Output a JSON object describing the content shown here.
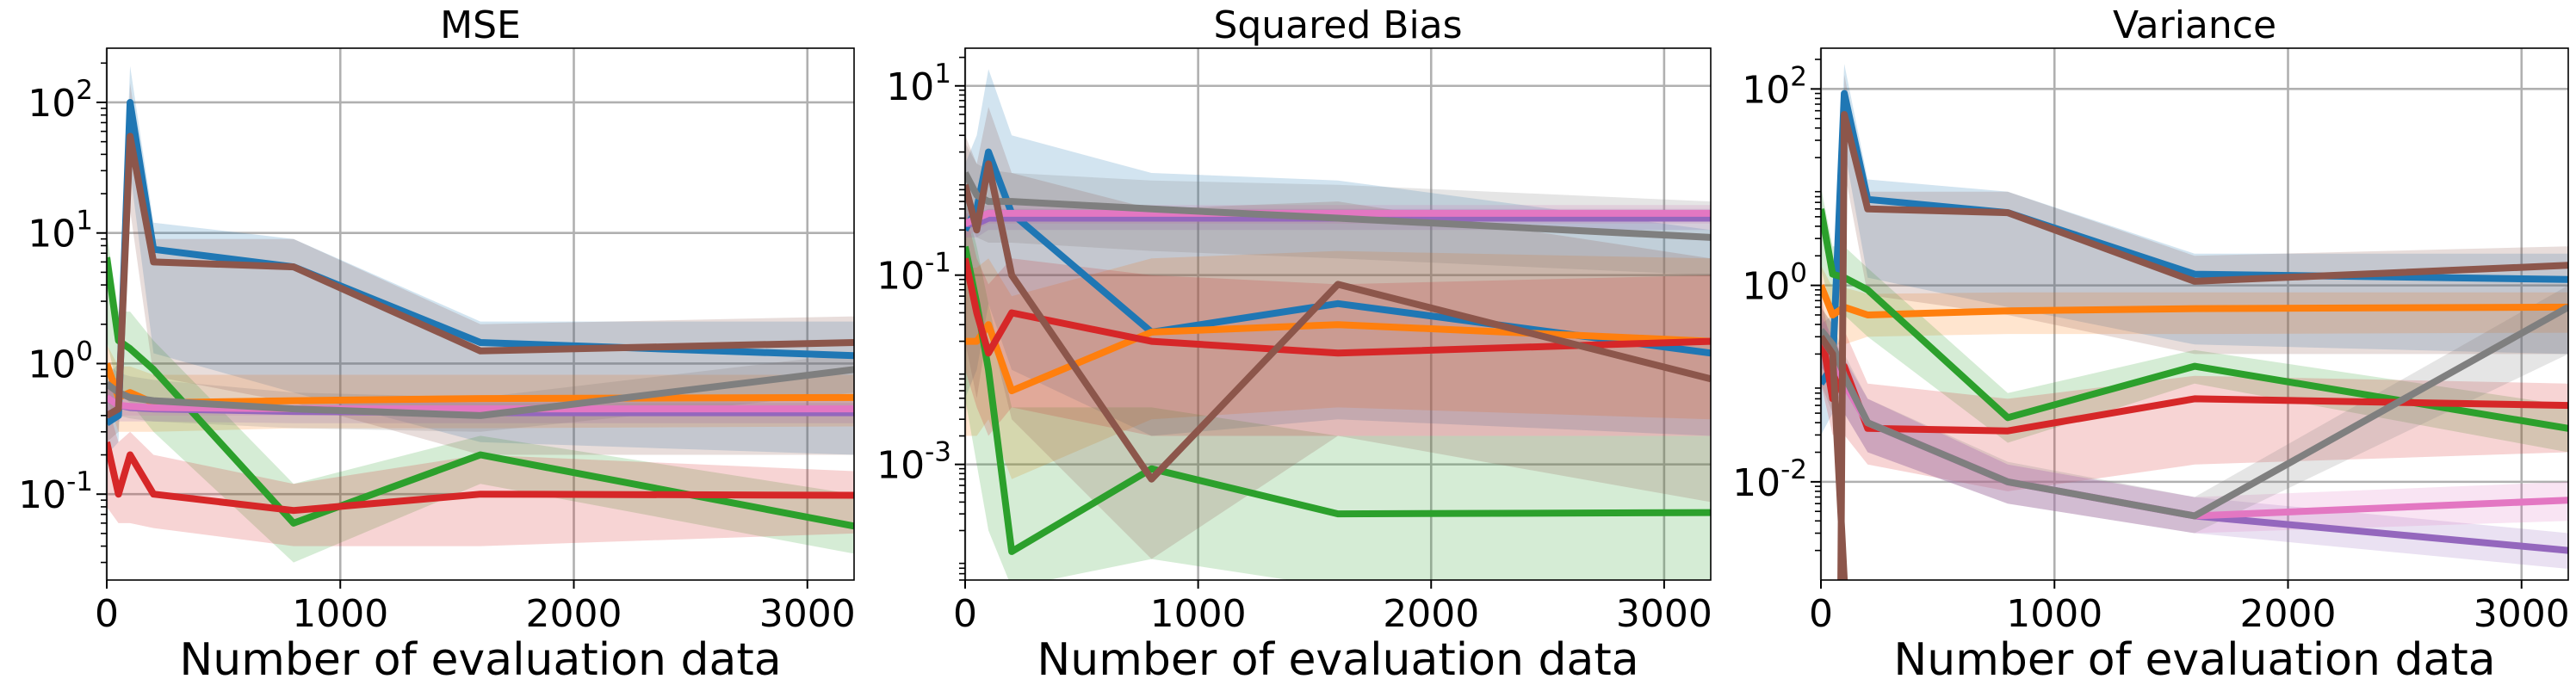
{
  "chart_data": [
    {
      "type": "line",
      "title": "MSE",
      "xlabel": "Number of evaluation data",
      "ylabel": "",
      "yscale": "log",
      "xlim": [
        0,
        3200
      ],
      "ylim": [
        0.022,
        260
      ],
      "x_ticks": [
        0,
        1000,
        2000,
        3000
      ],
      "x_tick_labels": [
        "0",
        "1000",
        "2000",
        "3000"
      ],
      "y_ticks": [
        0.1,
        1,
        10,
        100
      ],
      "y_tick_labels": [
        "10^{-1}",
        "10^{0}",
        "10^{1}",
        "10^{2}"
      ],
      "grid": true,
      "series": [
        {
          "color": "#1f77b4",
          "x": [
            0,
            50,
            100,
            200,
            800,
            1600,
            3200
          ],
          "y": [
            0.35,
            0.4,
            100,
            7.5,
            5.5,
            1.45,
            1.15
          ],
          "lo": [
            0.2,
            0.25,
            30,
            1.2,
            0.6,
            0.25,
            0.2
          ],
          "hi": [
            0.8,
            1.0,
            190,
            12,
            9,
            2.1,
            2.1
          ]
        },
        {
          "color": "#ff7f0e",
          "x": [
            0,
            50,
            100,
            200,
            800,
            1600,
            3200
          ],
          "y": [
            1.0,
            0.55,
            0.6,
            0.5,
            0.52,
            0.54,
            0.55
          ],
          "lo": [
            0.55,
            0.3,
            0.3,
            0.3,
            0.32,
            0.32,
            0.33
          ],
          "hi": [
            1.4,
            0.95,
            0.95,
            0.82,
            0.82,
            0.82,
            0.82
          ]
        },
        {
          "color": "#2ca02c",
          "x": [
            0,
            50,
            100,
            200,
            800,
            1600,
            3200
          ],
          "y": [
            6.5,
            1.5,
            1.3,
            0.9,
            0.06,
            0.2,
            0.057
          ],
          "lo": [
            1.5,
            0.6,
            0.5,
            0.3,
            0.03,
            0.12,
            0.035
          ],
          "hi": [
            10,
            2.5,
            2.5,
            1.5,
            0.12,
            0.28,
            0.1
          ]
        },
        {
          "color": "#d62728",
          "x": [
            0,
            50,
            100,
            200,
            800,
            1600,
            3200
          ],
          "y": [
            0.25,
            0.1,
            0.2,
            0.1,
            0.075,
            0.1,
            0.098
          ],
          "lo": [
            0.08,
            0.06,
            0.06,
            0.055,
            0.04,
            0.04,
            0.05
          ],
          "hi": [
            0.5,
            0.25,
            0.3,
            0.2,
            0.12,
            0.2,
            0.15
          ]
        },
        {
          "color": "#9467bd",
          "x": [
            0,
            50,
            100,
            200,
            800,
            1600,
            3200
          ],
          "y": [
            0.55,
            0.48,
            0.46,
            0.45,
            0.43,
            0.42,
            0.42
          ],
          "lo": [
            0.38,
            0.36,
            0.36,
            0.36,
            0.35,
            0.35,
            0.35
          ],
          "hi": [
            0.7,
            0.62,
            0.58,
            0.55,
            0.52,
            0.5,
            0.5
          ]
        },
        {
          "color": "#e377c2",
          "x": [
            0,
            50,
            100,
            200,
            800,
            1600,
            3200
          ],
          "y": [
            0.55,
            0.48,
            0.47,
            0.46,
            0.45,
            0.45,
            0.45
          ],
          "lo": [
            0.42,
            0.4,
            0.4,
            0.4,
            0.4,
            0.4,
            0.4
          ],
          "hi": [
            0.68,
            0.58,
            0.55,
            0.53,
            0.52,
            0.52,
            0.52
          ]
        },
        {
          "color": "#7f7f7f",
          "x": [
            0,
            50,
            100,
            200,
            800,
            1600,
            3200
          ],
          "y": [
            0.7,
            0.6,
            0.55,
            0.52,
            0.45,
            0.4,
            0.9
          ],
          "lo": [
            0.45,
            0.4,
            0.38,
            0.36,
            0.32,
            0.3,
            0.6
          ],
          "hi": [
            1.0,
            0.85,
            0.8,
            0.75,
            0.6,
            0.55,
            1.2
          ]
        },
        {
          "color": "#8c564b",
          "x": [
            0,
            50,
            100,
            200,
            800,
            1600,
            3200
          ],
          "y": [
            0.4,
            0.45,
            55,
            6.0,
            5.5,
            1.25,
            1.45
          ],
          "lo": [
            0.25,
            0.3,
            15,
            0.8,
            0.5,
            0.2,
            0.2
          ],
          "hi": [
            0.7,
            0.8,
            140,
            9,
            9,
            2.0,
            2.3
          ]
        }
      ]
    },
    {
      "type": "line",
      "title": "Squared Bias",
      "xlabel": "Number of evaluation data",
      "ylabel": "",
      "yscale": "log",
      "xlim": [
        0,
        3200
      ],
      "ylim": [
        6e-05,
        25
      ],
      "x_ticks": [
        0,
        1000,
        2000,
        3000
      ],
      "x_tick_labels": [
        "0",
        "1000",
        "2000",
        "3000"
      ],
      "y_ticks": [
        0.001,
        0.1,
        10
      ],
      "y_tick_labels": [
        "10^{-3}",
        "10^{-1}",
        "10^{1}"
      ],
      "grid": true,
      "series": [
        {
          "color": "#1f77b4",
          "x": [
            0,
            50,
            100,
            200,
            800,
            1600,
            3200
          ],
          "y": [
            0.3,
            0.5,
            2.0,
            0.45,
            0.025,
            0.05,
            0.015
          ],
          "lo": [
            0.005,
            0.01,
            0.05,
            0.01,
            0.002,
            0.003,
            0.002
          ],
          "hi": [
            1.5,
            3,
            15,
            3,
            1.2,
            1.0,
            0.3
          ]
        },
        {
          "color": "#ff7f0e",
          "x": [
            0,
            50,
            100,
            200,
            800,
            1600,
            3200
          ],
          "y": [
            0.02,
            0.02,
            0.03,
            0.006,
            0.025,
            0.03,
            0.02
          ],
          "lo": [
            0.002,
            0.002,
            0.003,
            0.0007,
            0.003,
            0.004,
            0.003
          ],
          "hi": [
            0.12,
            0.12,
            0.15,
            0.06,
            0.15,
            0.18,
            0.15
          ]
        },
        {
          "color": "#2ca02c",
          "x": [
            0,
            50,
            100,
            200,
            800,
            1600,
            3200
          ],
          "y": [
            0.2,
            0.05,
            0.01,
            0.00012,
            0.0009,
            0.0003,
            0.00031
          ],
          "lo": [
            0.005,
            0.001,
            0.0002,
            5e-05,
            0.0001,
            5e-05,
            5e-05
          ],
          "hi": [
            0.6,
            0.2,
            0.05,
            0.004,
            0.004,
            0.002,
            0.002
          ]
        },
        {
          "color": "#d62728",
          "x": [
            0,
            50,
            100,
            200,
            800,
            1600,
            3200
          ],
          "y": [
            0.15,
            0.04,
            0.015,
            0.04,
            0.02,
            0.015,
            0.02
          ],
          "lo": [
            0.01,
            0.004,
            0.002,
            0.004,
            0.002,
            0.002,
            0.002
          ],
          "hi": [
            0.5,
            0.15,
            0.08,
            0.15,
            0.1,
            0.08,
            0.1
          ]
        },
        {
          "color": "#9467bd",
          "x": [
            0,
            50,
            100,
            200,
            800,
            1600,
            3200
          ],
          "y": [
            0.35,
            0.35,
            0.4,
            0.4,
            0.4,
            0.4,
            0.4
          ],
          "lo": [
            0.25,
            0.25,
            0.3,
            0.3,
            0.3,
            0.3,
            0.3
          ],
          "hi": [
            0.45,
            0.45,
            0.5,
            0.5,
            0.5,
            0.5,
            0.5
          ]
        },
        {
          "color": "#e377c2",
          "x": [
            0,
            50,
            100,
            200,
            800,
            1600,
            3200
          ],
          "y": [
            0.35,
            0.4,
            0.45,
            0.45,
            0.45,
            0.45,
            0.45
          ],
          "lo": [
            0.25,
            0.3,
            0.35,
            0.35,
            0.35,
            0.35,
            0.35
          ],
          "hi": [
            0.5,
            0.52,
            0.55,
            0.55,
            0.55,
            0.55,
            0.55
          ]
        },
        {
          "color": "#7f7f7f",
          "x": [
            0,
            50,
            100,
            200,
            800,
            1600,
            3200
          ],
          "y": [
            1.2,
            0.7,
            0.6,
            0.6,
            0.5,
            0.4,
            0.25
          ],
          "lo": [
            0.4,
            0.25,
            0.22,
            0.22,
            0.18,
            0.15,
            0.1
          ],
          "hi": [
            2.5,
            1.5,
            1.3,
            1.2,
            1.0,
            0.9,
            0.6
          ]
        },
        {
          "color": "#8c564b",
          "x": [
            0,
            50,
            100,
            200,
            800,
            1600,
            3200
          ],
          "y": [
            0.9,
            0.3,
            1.5,
            0.1,
            0.0007,
            0.08,
            0.008
          ],
          "lo": [
            0.02,
            0.005,
            0.03,
            0.003,
            0.0001,
            0.002,
            0.0004
          ],
          "hi": [
            3,
            1.5,
            6,
            1.2,
            0.5,
            0.6,
            0.15
          ]
        }
      ]
    },
    {
      "type": "line",
      "title": "Variance",
      "xlabel": "Number of evaluation data",
      "ylabel": "",
      "yscale": "log",
      "xlim": [
        0,
        3200
      ],
      "ylim": [
        0.001,
        260
      ],
      "x_ticks": [
        0,
        1000,
        2000,
        3000
      ],
      "x_tick_labels": [
        "0",
        "1000",
        "2000",
        "3000"
      ],
      "y_ticks": [
        0.01,
        1,
        100
      ],
      "y_tick_labels": [
        "10^{-2}",
        "10^{0}",
        "10^{2}"
      ],
      "grid": true,
      "series": [
        {
          "color": "#1f77b4",
          "x": [
            0,
            50,
            100,
            200,
            800,
            1600,
            3200
          ],
          "y": [
            0.1,
            0.15,
            90,
            7.5,
            5.5,
            1.3,
            1.15
          ],
          "lo": [
            0.03,
            0.05,
            25,
            1.2,
            0.6,
            0.25,
            0.2
          ],
          "hi": [
            0.4,
            0.5,
            180,
            12,
            9,
            2.1,
            2.1
          ]
        },
        {
          "color": "#ff7f0e",
          "x": [
            0,
            50,
            100,
            200,
            800,
            1600,
            3200
          ],
          "y": [
            1.0,
            0.5,
            0.6,
            0.5,
            0.55,
            0.58,
            0.6
          ],
          "lo": [
            0.3,
            0.25,
            0.25,
            0.3,
            0.32,
            0.32,
            0.33
          ],
          "hi": [
            1.6,
            0.95,
            0.95,
            0.82,
            0.85,
            0.85,
            0.85
          ]
        },
        {
          "color": "#2ca02c",
          "x": [
            0,
            50,
            100,
            200,
            800,
            1600,
            3200
          ],
          "y": [
            6.0,
            1.3,
            1.2,
            0.9,
            0.045,
            0.15,
            0.035
          ],
          "lo": [
            1.5,
            0.5,
            0.5,
            0.3,
            0.025,
            0.1,
            0.02
          ],
          "hi": [
            10,
            2.5,
            2.5,
            1.5,
            0.08,
            0.22,
            0.06
          ]
        },
        {
          "color": "#d62728",
          "x": [
            0,
            50,
            100,
            200,
            800,
            1600,
            3200
          ],
          "y": [
            0.35,
            0.07,
            0.15,
            0.035,
            0.033,
            0.07,
            0.06
          ],
          "lo": [
            0.1,
            0.03,
            0.03,
            0.015,
            0.008,
            0.015,
            0.02
          ],
          "hi": [
            0.8,
            0.2,
            0.35,
            0.1,
            0.07,
            0.12,
            0.1
          ]
        },
        {
          "color": "#9467bd",
          "x": [
            0,
            50,
            100,
            200,
            800,
            1600,
            3200
          ],
          "y": [
            0.3,
            0.2,
            0.1,
            0.04,
            0.01,
            0.0045,
            0.002
          ],
          "lo": [
            0.15,
            0.1,
            0.05,
            0.02,
            0.006,
            0.003,
            0.0013
          ],
          "hi": [
            0.5,
            0.3,
            0.18,
            0.07,
            0.015,
            0.007,
            0.003
          ]
        },
        {
          "color": "#e377c2",
          "x": [
            0,
            50,
            100,
            200,
            800,
            1600,
            3200
          ],
          "y": [
            0.3,
            0.2,
            0.1,
            0.04,
            0.01,
            0.0045,
            0.0065
          ],
          "lo": [
            0.15,
            0.1,
            0.05,
            0.02,
            0.006,
            0.003,
            0.004
          ],
          "hi": [
            0.5,
            0.3,
            0.18,
            0.07,
            0.015,
            0.007,
            0.01
          ]
        },
        {
          "color": "#7f7f7f",
          "x": [
            0,
            50,
            100,
            200,
            800,
            1600,
            3200
          ],
          "y": [
            0.35,
            0.25,
            0.12,
            0.04,
            0.01,
            0.0045,
            0.6
          ],
          "lo": [
            0.15,
            0.1,
            0.05,
            0.02,
            0.006,
            0.003,
            0.2
          ],
          "hi": [
            0.6,
            0.4,
            0.2,
            0.07,
            0.016,
            0.007,
            1.0
          ]
        },
        {
          "color": "#8c564b",
          "x": [
            0,
            50,
            100,
            85,
            100,
            200,
            800,
            1600,
            3200
          ],
          "y": [
            0.3,
            0.2,
            0.001,
            0.001,
            55,
            6.0,
            5.5,
            1.1,
            1.6
          ],
          "lo": [
            0.1,
            0.05,
            0.001,
            0.001,
            15,
            0.8,
            0.5,
            0.2,
            0.2
          ],
          "hi": [
            0.6,
            0.4,
            0.001,
            0.001,
            140,
            9,
            9,
            2.0,
            2.5
          ]
        }
      ]
    }
  ]
}
